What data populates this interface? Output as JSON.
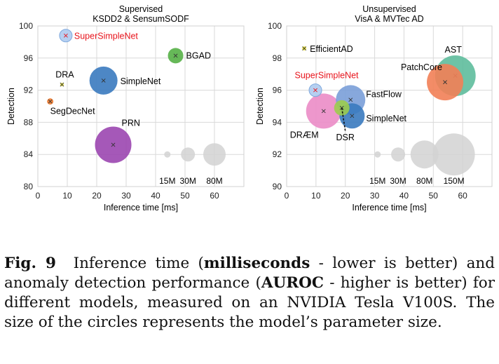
{
  "chart_data": [
    {
      "type": "scatter",
      "title": "Supervised",
      "subtitle": "KSDD2 & SensumSODF",
      "xlabel": "Inference time [ms]",
      "ylabel": "Detection",
      "xlim": [
        0,
        70
      ],
      "ylim": [
        80,
        100
      ],
      "xticks": [
        0,
        10,
        20,
        30,
        40,
        50,
        60
      ],
      "yticks": [
        80,
        84,
        88,
        92,
        96,
        100
      ],
      "grid": true,
      "points": [
        {
          "name": "SuperSimpleNet",
          "x": 9.5,
          "y": 98.8,
          "size": 18,
          "color": "#aecbf0",
          "label_color": "#e8141c",
          "highlight": true
        },
        {
          "name": "BGAD",
          "x": 46.8,
          "y": 96.3,
          "size": 22,
          "color": "#55b046",
          "label_color": "#000000"
        },
        {
          "name": "DRA",
          "x": 8.2,
          "y": 92.7,
          "size": 5,
          "color": "#f2ea3c",
          "label_color": "#000000"
        },
        {
          "name": "SimpleNet",
          "x": 22.3,
          "y": 93.2,
          "size": 40,
          "color": "#3a7abf",
          "label_color": "#000000"
        },
        {
          "name": "SegDecNet",
          "x": 4.2,
          "y": 90.6,
          "size": 9,
          "color": "#f07a2e",
          "label_color": "#000000"
        },
        {
          "name": "PRN",
          "x": 25.6,
          "y": 85.2,
          "size": 52,
          "color": "#9b46b0",
          "label_color": "#000000"
        }
      ],
      "size_legend": [
        {
          "label": "15M",
          "x": 44,
          "y": 84,
          "size": 9
        },
        {
          "label": "30M",
          "x": 51,
          "y": 84,
          "size": 20
        },
        {
          "name": "80M",
          "label": "80M",
          "x": 60,
          "y": 84,
          "size": 32
        }
      ]
    },
    {
      "type": "scatter",
      "title": "Unsupervised",
      "subtitle": "VisA & MVTec AD",
      "xlabel": "Inference time [ms]",
      "ylabel": "Detection",
      "xlim": [
        0,
        70
      ],
      "ylim": [
        90,
        100
      ],
      "xticks": [
        0,
        10,
        20,
        30,
        40,
        50,
        60
      ],
      "yticks": [
        90,
        92,
        94,
        96,
        98,
        100
      ],
      "grid": true,
      "points": [
        {
          "name": "EfficientAD",
          "x": 6.0,
          "y": 98.6,
          "size": 6,
          "color": "#f2ea3c",
          "label_color": "#000000"
        },
        {
          "name": "AST",
          "x": 57.5,
          "y": 96.9,
          "size": 58,
          "color": "#5ebd9c",
          "label_color": "#000000"
        },
        {
          "name": "PatchCore",
          "x": 54.0,
          "y": 96.5,
          "size": 52,
          "color": "#f28057",
          "label_color": "#000000"
        },
        {
          "name": "SuperSimpleNet",
          "x": 9.8,
          "y": 96.0,
          "size": 18,
          "color": "#aecbf0",
          "label_color": "#e8141c",
          "highlight": true
        },
        {
          "name": "FastFlow",
          "x": 21.8,
          "y": 95.4,
          "size": 42,
          "color": "#7a9ed8",
          "label_color": "#000000"
        },
        {
          "name": "SimpleNet",
          "x": 22.3,
          "y": 94.4,
          "size": 36,
          "color": "#3a7abf",
          "label_color": "#000000"
        },
        {
          "name": "DRÆM",
          "x": 12.6,
          "y": 94.7,
          "size": 50,
          "color": "#eb8cc6",
          "label_color": "#000000"
        },
        {
          "name": "DSR",
          "x": 18.8,
          "y": 94.9,
          "size": 22,
          "color": "#9ccc4e",
          "label_color": "#000000"
        }
      ],
      "size_legend": [
        {
          "label": "15M",
          "x": 31,
          "y": 92,
          "size": 9
        },
        {
          "label": "30M",
          "x": 38,
          "y": 92,
          "size": 20
        },
        {
          "label": "80M",
          "x": 47,
          "y": 92,
          "size": 40
        },
        {
          "label": "150M",
          "x": 57,
          "y": 92,
          "size": 60
        }
      ]
    }
  ],
  "caption": {
    "label": "Fig. 9",
    "text_before": "Inference time (",
    "bold_1": "milliseconds",
    "text_middle_1": " - lower is better) and anomaly detection performance (",
    "bold_2": "AUROC",
    "text_after": " - higher is better) for different models, measured on an NVIDIA Tesla V100S. The size of the circles represents the model’s parameter size."
  }
}
